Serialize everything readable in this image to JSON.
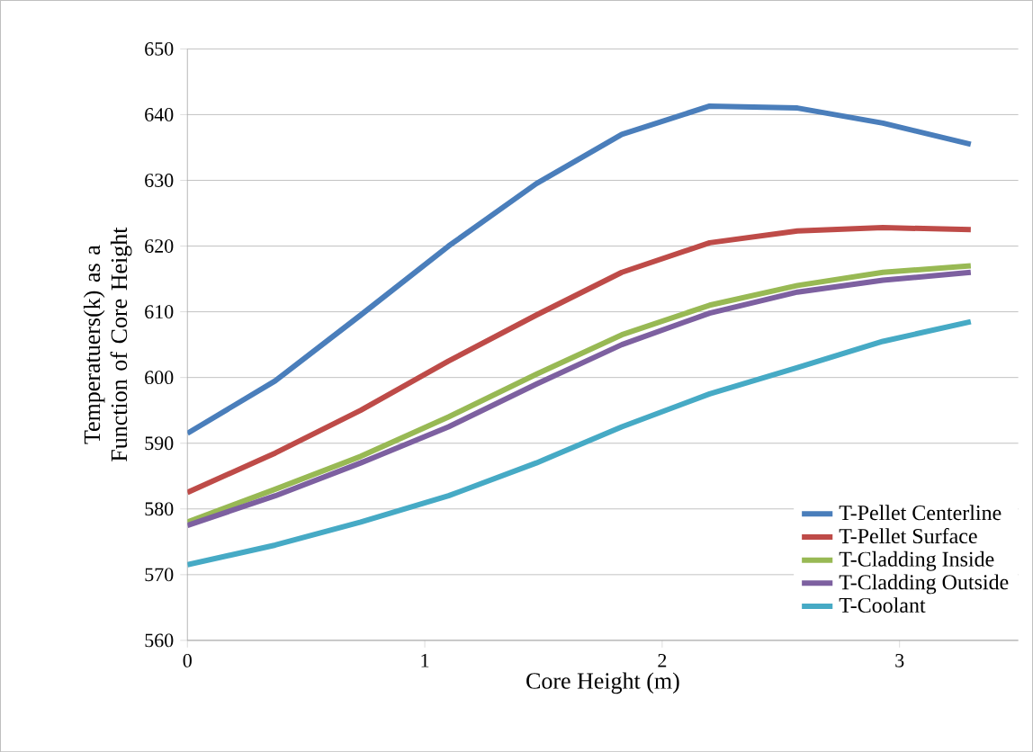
{
  "chart_data": {
    "type": "line",
    "xlabel": "Core Height (m)",
    "ylabel": "Temperatuers(k) as a Function of Core Height",
    "x": [
      0,
      0.37,
      0.73,
      1.1,
      1.47,
      1.83,
      2.2,
      2.57,
      2.93,
      3.3
    ],
    "series": [
      {
        "name": "T-Pellet Centerline",
        "color": "#4a7ebb",
        "values": [
          591.5,
          599.5,
          609.5,
          620,
          629.5,
          637,
          641.3,
          641,
          638.7,
          635.5
        ]
      },
      {
        "name": "T-Pellet Surface",
        "color": "#be4b48",
        "values": [
          582.5,
          588.5,
          595,
          602.5,
          609.5,
          616,
          620.5,
          622.3,
          622.8,
          622.5
        ]
      },
      {
        "name": "T-Cladding Inside",
        "color": "#98b954",
        "values": [
          578,
          583,
          588,
          594,
          600.5,
          606.5,
          611,
          614,
          616,
          617
        ]
      },
      {
        "name": "T-Cladding Outside",
        "color": "#7d60a0",
        "values": [
          577.5,
          582,
          587,
          592.5,
          599,
          605,
          609.8,
          613,
          614.8,
          616
        ]
      },
      {
        "name": "T-Coolant",
        "color": "#46aac5",
        "values": [
          571.5,
          574.5,
          578,
          582,
          587,
          592.5,
          597.5,
          601.5,
          605.5,
          608.5
        ]
      }
    ],
    "xlim": [
      0,
      3.5
    ],
    "xticks": [
      0,
      1,
      2,
      3
    ],
    "ylim": [
      560,
      650
    ],
    "yticks": [
      560,
      570,
      580,
      590,
      600,
      610,
      620,
      630,
      640,
      650
    ],
    "grid": "y",
    "legend": "bottom right",
    "marker": "none",
    "line_style": "solid"
  }
}
